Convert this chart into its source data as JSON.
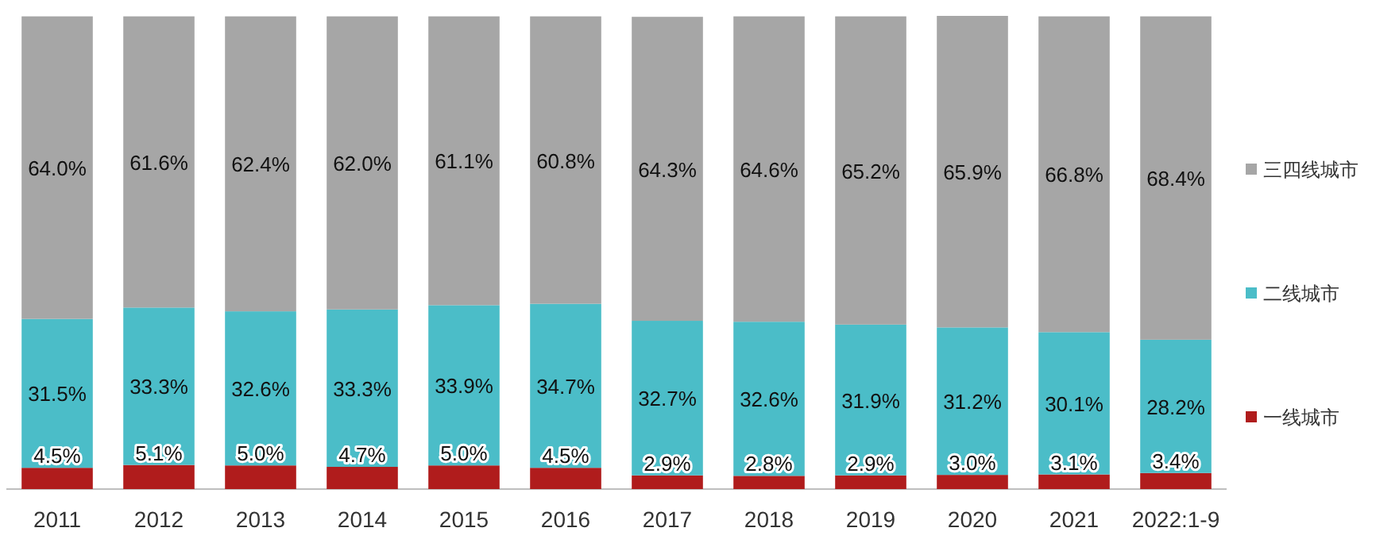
{
  "chart_data": {
    "type": "bar",
    "stacked": true,
    "legend": "right",
    "tick_labels": "x",
    "categories": [
      "2011",
      "2012",
      "2013",
      "2014",
      "2015",
      "2016",
      "2017",
      "2018",
      "2019",
      "2020",
      "2021",
      "2022:1-9"
    ],
    "series": [
      {
        "name": "一线城市",
        "color": "#b01c1c",
        "values": [
          4.5,
          5.1,
          5.0,
          4.7,
          5.0,
          4.5,
          2.9,
          2.8,
          2.9,
          3.0,
          3.1,
          3.4
        ],
        "value_labels": [
          "4.5%",
          "5.1%",
          "5.0%",
          "4.7%",
          "5.0%",
          "4.5%",
          "2.9%",
          "2.8%",
          "2.9%",
          "3.0%",
          "3.1%",
          "3.4%"
        ]
      },
      {
        "name": "二线城市",
        "color": "#4bbdc8",
        "values": [
          31.5,
          33.3,
          32.6,
          33.3,
          33.9,
          34.7,
          32.7,
          32.6,
          31.9,
          31.2,
          30.1,
          28.2
        ],
        "value_labels": [
          "31.5%",
          "33.3%",
          "32.6%",
          "33.3%",
          "33.9%",
          "34.7%",
          "32.7%",
          "32.6%",
          "31.9%",
          "31.2%",
          "30.1%",
          "28.2%"
        ]
      },
      {
        "name": "三四线城市",
        "color": "#a6a6a6",
        "values": [
          64.0,
          61.6,
          62.4,
          62.0,
          61.1,
          60.8,
          64.3,
          64.6,
          65.2,
          65.9,
          66.8,
          68.4
        ],
        "value_labels": [
          "64.0%",
          "61.6%",
          "62.4%",
          "62.0%",
          "61.1%",
          "60.8%",
          "64.3%",
          "64.6%",
          "65.2%",
          "65.9%",
          "66.8%",
          "68.4%"
        ]
      }
    ]
  }
}
